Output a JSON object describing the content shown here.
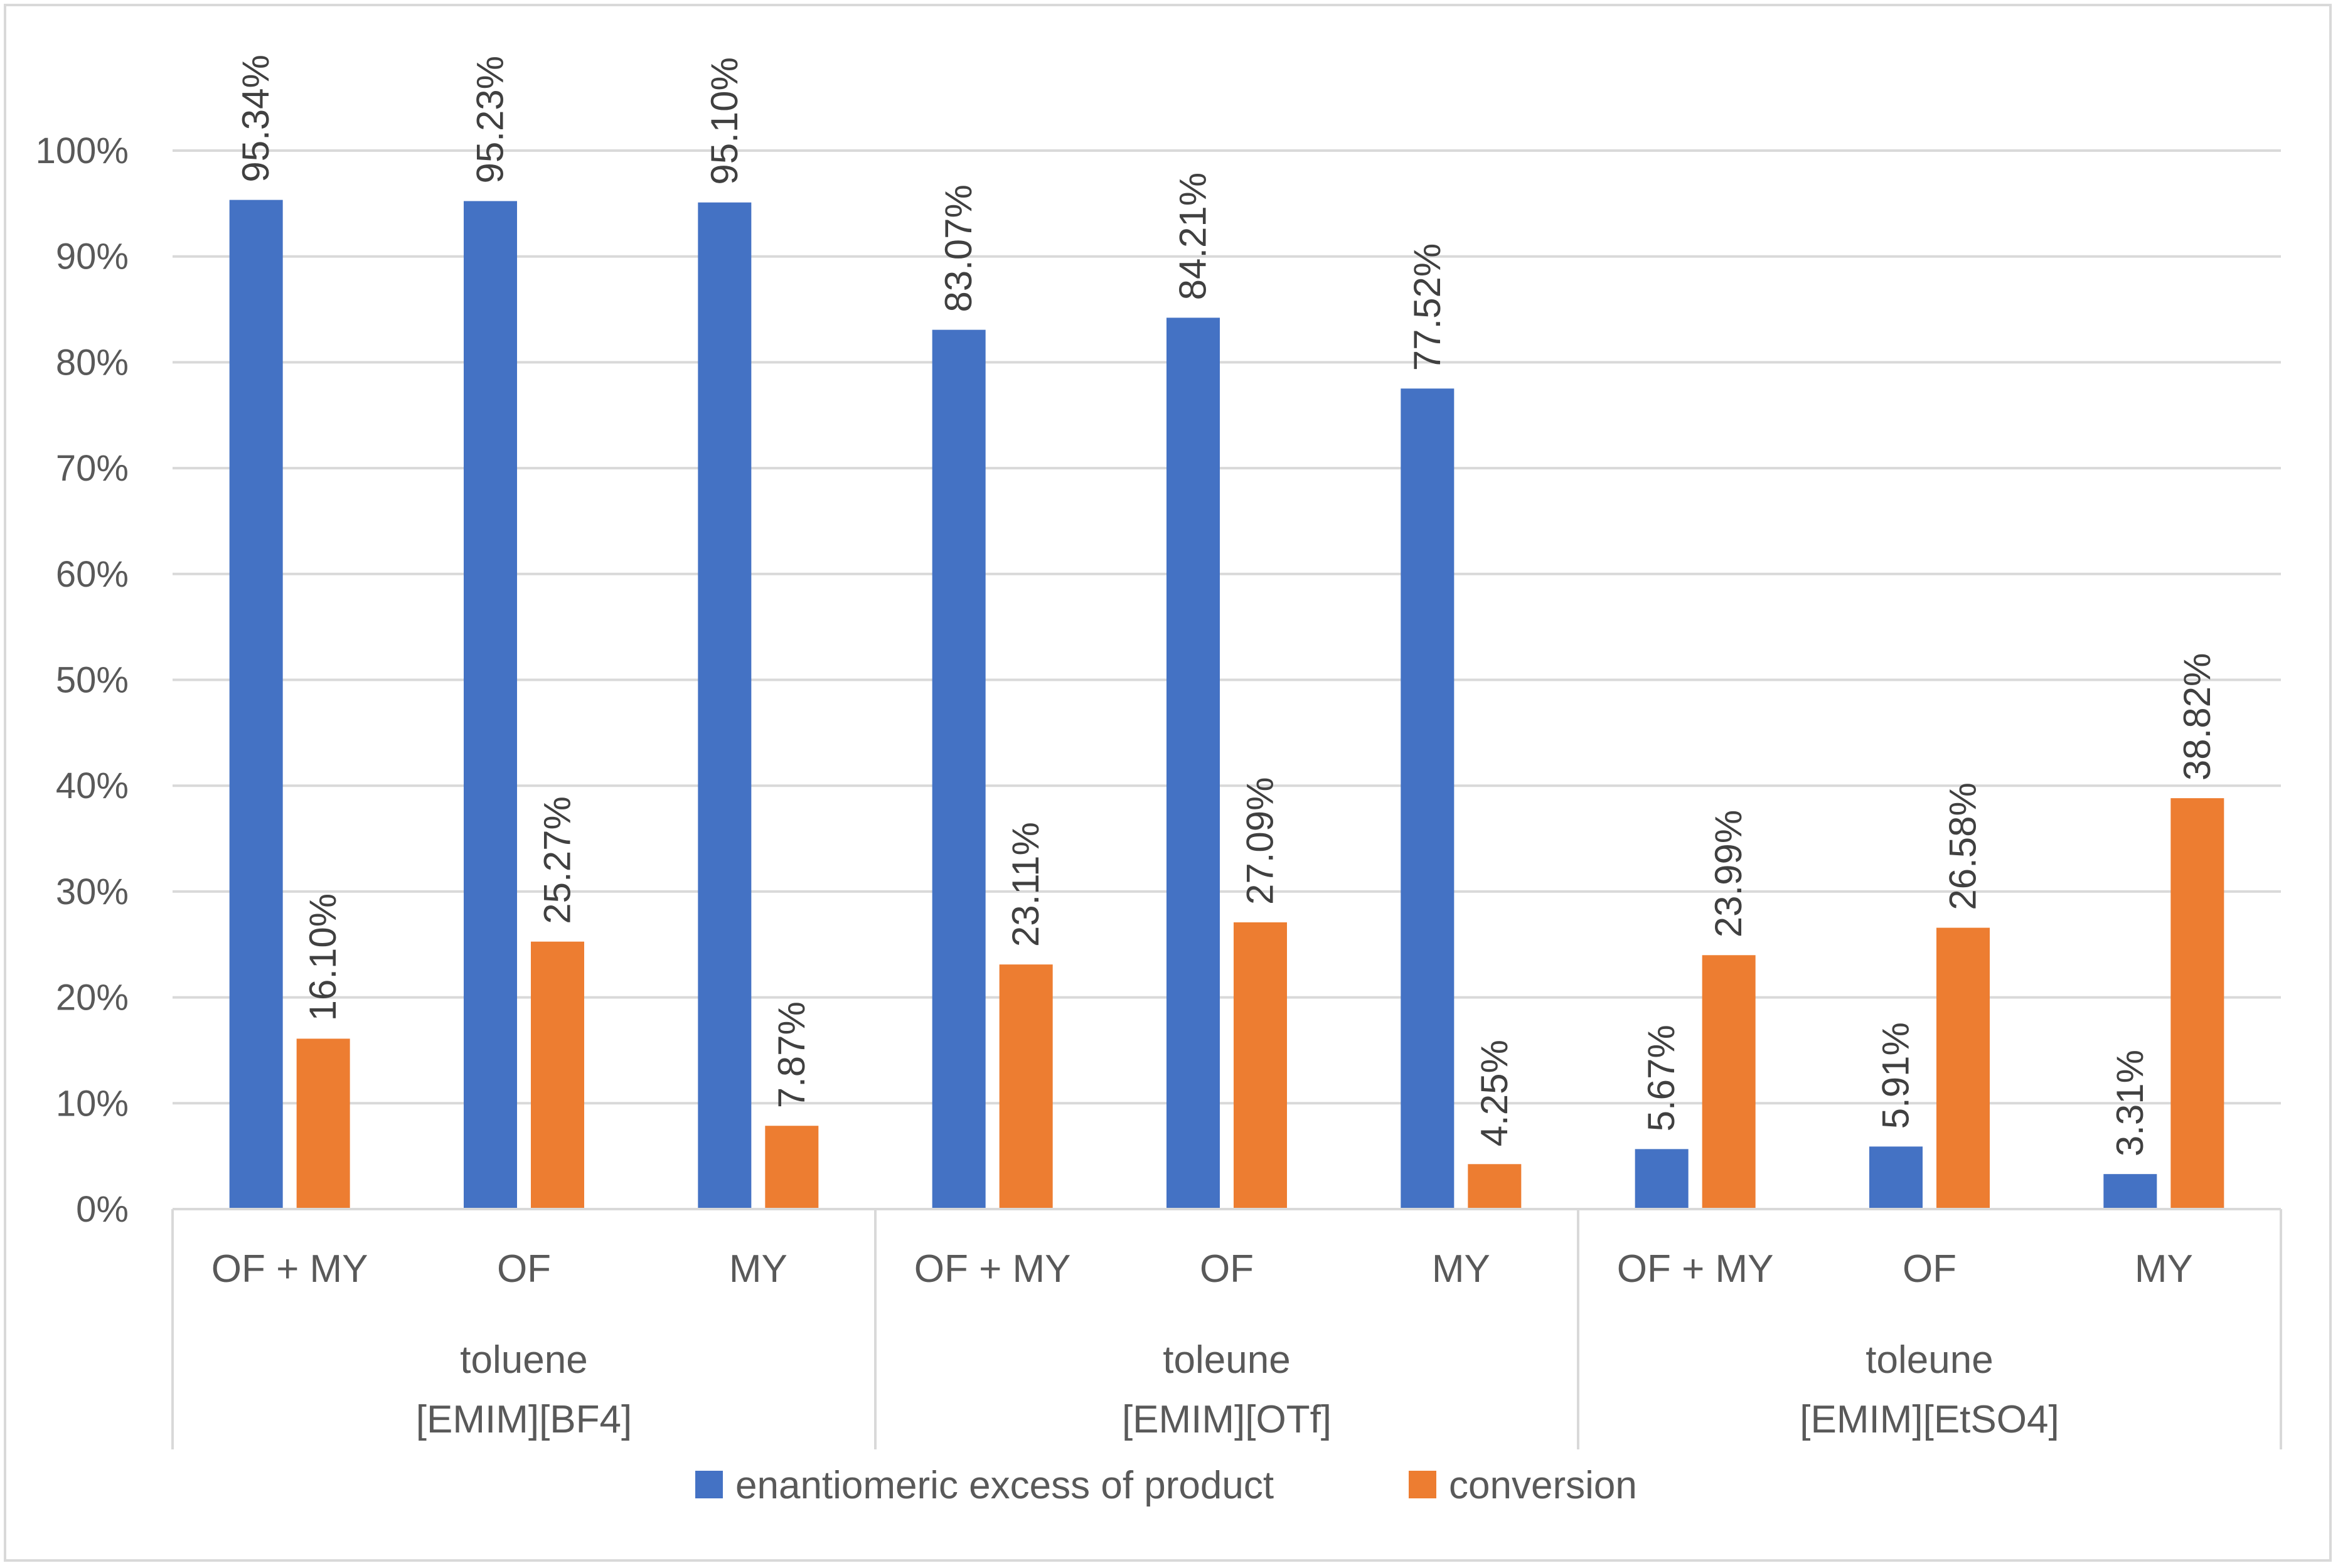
{
  "chart_data": {
    "type": "bar",
    "title": "",
    "xlabel": "",
    "ylabel": "",
    "ylim": [
      0,
      100
    ],
    "y_ticks": [
      "0%",
      "10%",
      "20%",
      "30%",
      "40%",
      "50%",
      "60%",
      "70%",
      "80%",
      "90%",
      "100%"
    ],
    "grid": true,
    "legend_position": "bottom",
    "groups": [
      {
        "line1": "toluene",
        "line2": "[EMIM][BF4]",
        "categories": [
          "OF + MY",
          "OF",
          "MY"
        ]
      },
      {
        "line1": "toleune",
        "line2": "[EMIM][OTf]",
        "categories": [
          "OF + MY",
          "OF",
          "MY"
        ]
      },
      {
        "line1": "toleune",
        "line2": "[EMIM][EtSO4]",
        "categories": [
          "OF + MY",
          "OF",
          "MY"
        ]
      }
    ],
    "series": [
      {
        "name": "enantiomeric excess of product",
        "color": "#4472c4",
        "values": [
          95.34,
          95.23,
          95.1,
          83.07,
          84.21,
          77.52,
          5.67,
          5.91,
          3.31
        ],
        "labels": [
          "95.34%",
          "95.23%",
          "95.10%",
          "83.07%",
          "84.21%",
          "77.52%",
          "5.67%",
          "5.91%",
          "3.31%"
        ]
      },
      {
        "name": "conversion",
        "color": "#ed7d31",
        "values": [
          16.1,
          25.27,
          7.87,
          23.11,
          27.09,
          4.25,
          23.99,
          26.58,
          38.82
        ],
        "labels": [
          "16.10%",
          "25.27%",
          "7.87%",
          "23.11%",
          "27.09%",
          "4.25%",
          "23.99%",
          "26.58%",
          "38.82%"
        ]
      }
    ]
  }
}
